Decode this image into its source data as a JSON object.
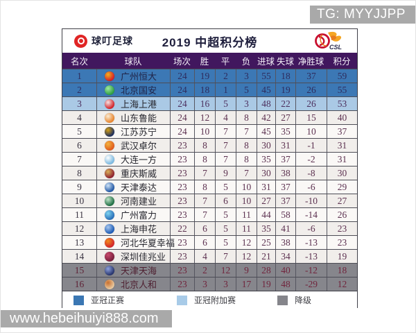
{
  "watermarks": {
    "telegram": "TG: MYYJJPP",
    "website": "www.hebeihuiyi888.com"
  },
  "header": {
    "brand": "球叮足球",
    "brand_color": "#e02525",
    "title": "2019 中超积分榜",
    "csl_label": "CSL"
  },
  "chart_data": {
    "type": "table",
    "title": "2019 中超积分榜",
    "columns": [
      "名次",
      "球队",
      "场次",
      "胜",
      "平",
      "负",
      "进球",
      "失球",
      "净胜球",
      "积分"
    ],
    "rows": [
      {
        "rank": 1,
        "team": "广州恒大",
        "played": 24,
        "win": 19,
        "draw": 2,
        "loss": 3,
        "gf": 55,
        "ga": 18,
        "gd": 37,
        "pts": 59,
        "zone": "acl",
        "badge": [
          "#d31f2b",
          "#f5b21a"
        ]
      },
      {
        "rank": 2,
        "team": "北京国安",
        "played": 24,
        "win": 18,
        "draw": 1,
        "loss": 5,
        "gf": 45,
        "ga": 19,
        "gd": 26,
        "pts": 55,
        "zone": "acl",
        "badge": [
          "#2f9e44",
          "#9fe89f"
        ]
      },
      {
        "rank": 3,
        "team": "上海上港",
        "played": 24,
        "win": 16,
        "draw": 5,
        "loss": 3,
        "gf": 48,
        "ga": 22,
        "gd": 26,
        "pts": 53,
        "zone": "acl_playoff",
        "badge": [
          "#d2232a",
          "#f6e3e3"
        ]
      },
      {
        "rank": 4,
        "team": "山东鲁能",
        "played": 24,
        "win": 12,
        "draw": 4,
        "loss": 8,
        "gf": 42,
        "ga": 27,
        "gd": 15,
        "pts": 40,
        "zone": "",
        "badge": [
          "#e8842c",
          "#f8ecd6"
        ]
      },
      {
        "rank": 5,
        "team": "江苏苏宁",
        "played": 24,
        "win": 10,
        "draw": 7,
        "loss": 7,
        "gf": 45,
        "ga": 35,
        "gd": 10,
        "pts": 37,
        "zone": "",
        "badge": [
          "#1b2d5e",
          "#d4a017"
        ]
      },
      {
        "rank": 6,
        "team": "武汉卓尔",
        "played": 23,
        "win": 8,
        "draw": 7,
        "loss": 8,
        "gf": 30,
        "ga": 31,
        "gd": -1,
        "pts": 31,
        "zone": "",
        "badge": [
          "#e05a1c",
          "#f2b33d"
        ]
      },
      {
        "rank": 7,
        "team": "大连一方",
        "played": 23,
        "win": 8,
        "draw": 7,
        "loss": 8,
        "gf": 35,
        "ga": 37,
        "gd": -2,
        "pts": 31,
        "zone": "",
        "badge": [
          "#79b8e0",
          "#ffffff"
        ]
      },
      {
        "rank": 8,
        "team": "重庆斯威",
        "played": 23,
        "win": 7,
        "draw": 9,
        "loss": 7,
        "gf": 30,
        "ga": 38,
        "gd": -8,
        "pts": 30,
        "zone": "",
        "badge": [
          "#8e1f2f",
          "#d8b25a"
        ]
      },
      {
        "rank": 9,
        "team": "天津泰达",
        "played": 23,
        "win": 8,
        "draw": 5,
        "loss": 10,
        "gf": 31,
        "ga": 37,
        "gd": -6,
        "pts": 29,
        "zone": "",
        "badge": [
          "#2258a5",
          "#cfe3f7"
        ]
      },
      {
        "rank": 10,
        "team": "河南建业",
        "played": 23,
        "win": 7,
        "draw": 6,
        "loss": 10,
        "gf": 27,
        "ga": 37,
        "gd": -10,
        "pts": 27,
        "zone": "",
        "badge": [
          "#1f6e43",
          "#bfe3c8"
        ]
      },
      {
        "rank": 11,
        "team": "广州富力",
        "played": 23,
        "win": 7,
        "draw": 5,
        "loss": 11,
        "gf": 44,
        "ga": 58,
        "gd": -14,
        "pts": 26,
        "zone": "",
        "badge": [
          "#2a6fb8",
          "#7fd4f0"
        ]
      },
      {
        "rank": 12,
        "team": "上海申花",
        "played": 22,
        "win": 6,
        "draw": 5,
        "loss": 11,
        "gf": 35,
        "ga": 41,
        "gd": -6,
        "pts": 23,
        "zone": "",
        "badge": [
          "#1d5bb5",
          "#a8c8ee"
        ]
      },
      {
        "rank": 13,
        "team": "河北华夏幸福",
        "played": 23,
        "win": 6,
        "draw": 5,
        "loss": 12,
        "gf": 25,
        "ga": 38,
        "gd": -13,
        "pts": 23,
        "zone": "",
        "badge": [
          "#d2232a",
          "#f08c1e"
        ]
      },
      {
        "rank": 14,
        "team": "深圳佳兆业",
        "played": 23,
        "win": 4,
        "draw": 7,
        "loss": 12,
        "gf": 21,
        "ga": 34,
        "gd": -13,
        "pts": 19,
        "zone": "",
        "badge": [
          "#7a1f3d",
          "#c84b6e"
        ]
      },
      {
        "rank": 15,
        "team": "天津天海",
        "played": 23,
        "win": 2,
        "draw": 12,
        "loss": 9,
        "gf": 28,
        "ga": 40,
        "gd": -12,
        "pts": 18,
        "zone": "relegation",
        "badge": [
          "#28356e",
          "#8fa2dc"
        ]
      },
      {
        "rank": 16,
        "team": "北京人和",
        "played": 23,
        "win": 3,
        "draw": 3,
        "loss": 17,
        "gf": 19,
        "ga": 48,
        "gd": -29,
        "pts": 12,
        "zone": "relegation",
        "badge": [
          "#e8c9a0",
          "#c96f2e"
        ]
      }
    ],
    "legend_position": "bottom",
    "zone_colors": {
      "header_bg": "#41175e",
      "acl": "#3c78b5",
      "acl_playoff": "#aac9e5",
      "relegation": "#86868c"
    }
  },
  "legend": {
    "items": [
      {
        "label": "亚冠正赛",
        "color": "#3b77b3"
      },
      {
        "label": "亚冠附加赛",
        "color": "#a8cbe8"
      },
      {
        "label": "降级",
        "color": "#85858b"
      }
    ]
  }
}
